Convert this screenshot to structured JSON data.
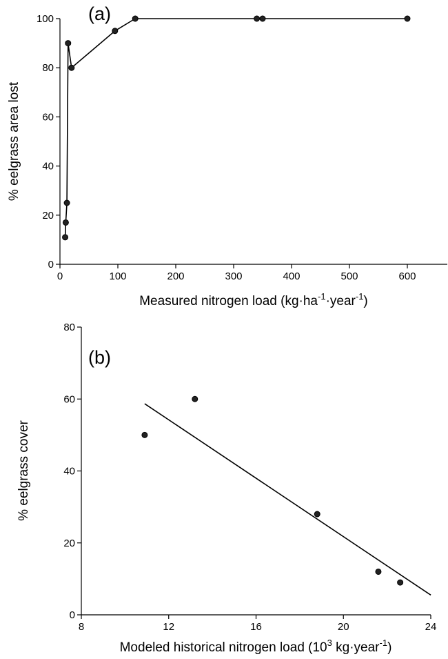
{
  "chart_data": [
    {
      "type": "line",
      "panel_label": "(a)",
      "title": "",
      "xlabel_parts": [
        "Measured nitrogen load (kg·ha",
        "-1",
        "·year",
        "-1",
        ")"
      ],
      "ylabel": "% eelgrass area lost",
      "xlim": [
        0,
        650
      ],
      "ylim": [
        0,
        100
      ],
      "xticks": [
        0,
        100,
        200,
        300,
        400,
        500,
        600
      ],
      "yticks": [
        0,
        20,
        40,
        60,
        80,
        100
      ],
      "grid": false,
      "series": [
        {
          "x": [
            9,
            10,
            12,
            14,
            20,
            95,
            130,
            340,
            350,
            600
          ],
          "y": [
            11,
            17,
            25,
            90,
            80,
            95,
            100,
            100,
            100,
            100
          ]
        }
      ]
    },
    {
      "type": "scatter",
      "panel_label": "(b)",
      "title": "",
      "xlabel_parts": [
        "Modeled historical nitrogen load (10",
        "3",
        " kg·year",
        "-1",
        ")"
      ],
      "ylabel": "% eelgrass cover",
      "xlim": [
        8,
        24
      ],
      "ylim": [
        0,
        80
      ],
      "xticks": [
        8,
        12,
        16,
        20,
        24
      ],
      "yticks": [
        0,
        20,
        40,
        60,
        80
      ],
      "grid": false,
      "series": [
        {
          "x": [
            10.9,
            13.2,
            18.8,
            21.6,
            22.6
          ],
          "y": [
            50,
            60,
            28,
            12,
            9
          ]
        }
      ],
      "fit_line": {
        "x": [
          10.9,
          24
        ],
        "y": [
          58.7,
          5.5
        ]
      }
    }
  ]
}
